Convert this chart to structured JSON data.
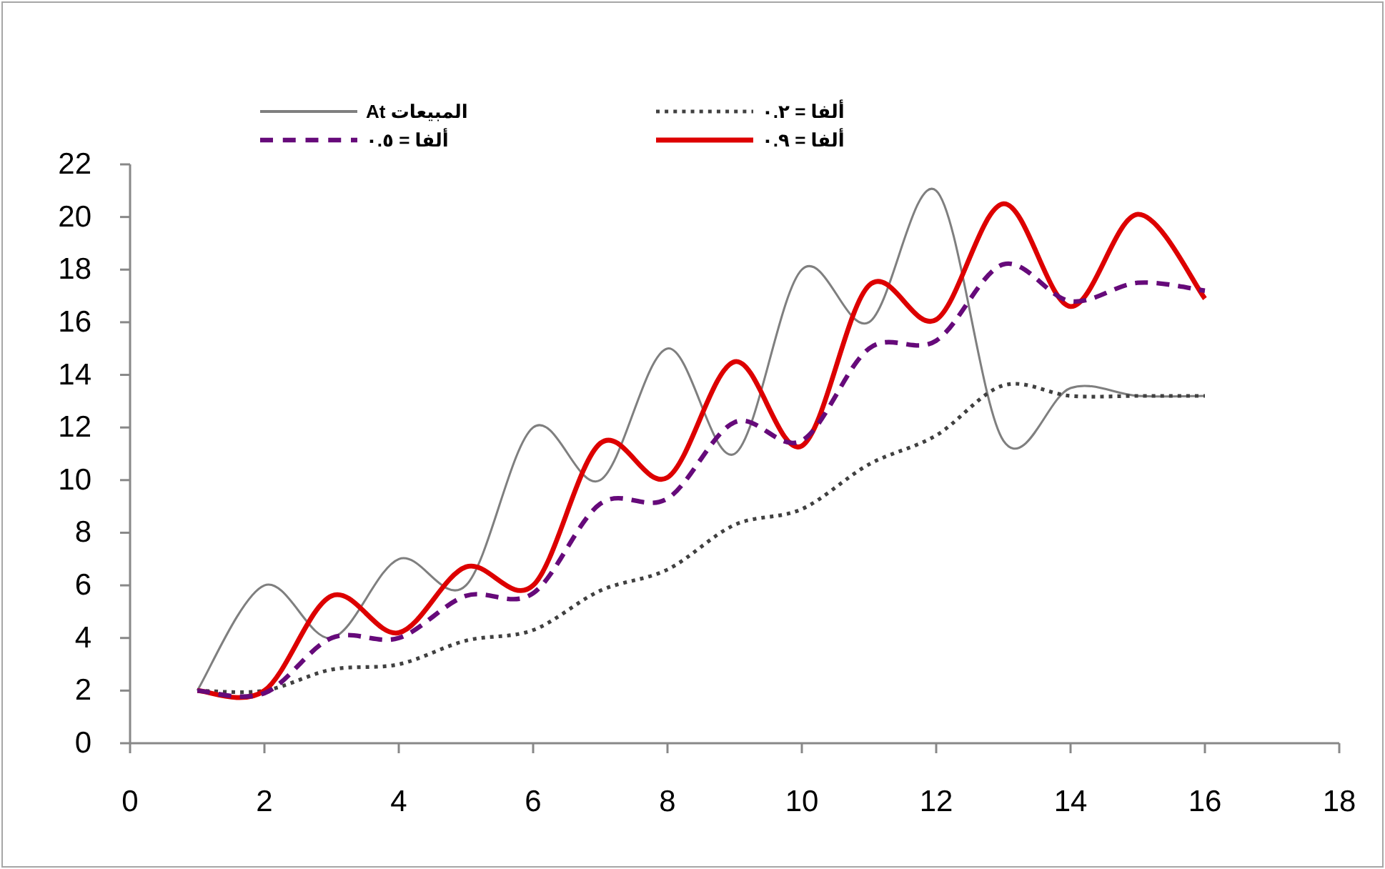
{
  "chart_data": {
    "type": "line",
    "x": [
      1,
      2,
      3,
      4,
      5,
      6,
      7,
      8,
      9,
      10,
      11,
      12,
      13,
      14,
      15,
      16
    ],
    "series": [
      {
        "name": "المبيعات At",
        "color": "#7f7f7f",
        "line_style": "solid",
        "values": [
          2,
          6,
          4,
          7,
          6,
          12,
          10,
          15,
          11,
          18,
          16,
          21,
          11.5,
          13.5,
          13.2,
          13.2
        ]
      },
      {
        "name": "ألفا = ٠.٢",
        "color": "#404040",
        "line_style": "dotted",
        "values": [
          2,
          2,
          2.8,
          3,
          3.9,
          4.3,
          5.8,
          6.6,
          8.3,
          8.9,
          10.6,
          11.7,
          13.6,
          13.2,
          13.2,
          13.2
        ]
      },
      {
        "name": "ألفا = ٠.٥",
        "color": "#660a7a",
        "line_style": "dashed",
        "values": [
          2,
          1.9,
          4,
          4,
          5.6,
          5.7,
          9.1,
          9.3,
          12.2,
          11.5,
          15,
          15.3,
          18.2,
          16.8,
          17.5,
          17.2
        ]
      },
      {
        "name": "ألفا = ٠.٩",
        "color": "#dd0000",
        "line_style": "solid",
        "values": [
          2,
          2,
          5.6,
          4.2,
          6.7,
          6,
          11.4,
          10.1,
          14.5,
          11.3,
          17.4,
          16.1,
          20.5,
          16.6,
          20.1,
          16.9
        ]
      }
    ],
    "xlim": [
      0,
      18
    ],
    "xticks": [
      0,
      2,
      4,
      6,
      8,
      10,
      12,
      14,
      16,
      18
    ],
    "ylim": [
      0,
      22
    ],
    "yticks": [
      0,
      2,
      4,
      6,
      8,
      10,
      12,
      14,
      16,
      18,
      20,
      22
    ],
    "legend": "top"
  }
}
